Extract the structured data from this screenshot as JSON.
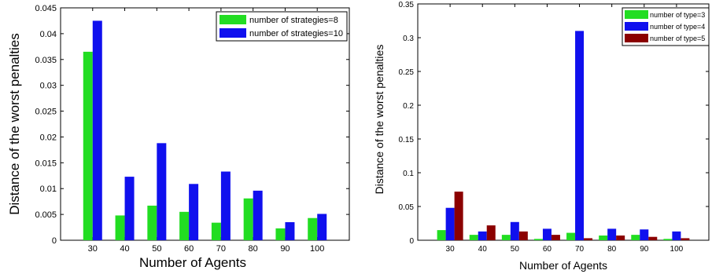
{
  "chart_data": [
    {
      "type": "bar",
      "xlabel": "Number of Agents",
      "ylabel": "Distance of the worst penalties",
      "ylim": [
        0,
        0.045
      ],
      "yticks": [
        "0",
        "0.005",
        "0.01",
        "0.015",
        "0.02",
        "0.025",
        "0.03",
        "0.035",
        "0.04",
        "0.045"
      ],
      "categories": [
        "30",
        "40",
        "50",
        "60",
        "70",
        "80",
        "90",
        "100"
      ],
      "legend_position": "top-right",
      "grid": false,
      "series": [
        {
          "name": "number of strategies=8",
          "color": "#22dd22",
          "values": [
            0.0365,
            0.0048,
            0.0067,
            0.0055,
            0.0034,
            0.0081,
            0.0023,
            0.0043
          ]
        },
        {
          "name": "number of strategies=10",
          "color": "#1010ee",
          "values": [
            0.0425,
            0.0123,
            0.0188,
            0.0109,
            0.0133,
            0.0096,
            0.0035,
            0.0051
          ]
        }
      ]
    },
    {
      "type": "bar",
      "xlabel": "Number of Agents",
      "ylabel": "Distance of the worst penalties",
      "ylim": [
        0,
        0.35
      ],
      "yticks": [
        "0",
        "0.05",
        "0.1",
        "0.15",
        "0.2",
        "0.25",
        "0.3",
        "0.35"
      ],
      "categories": [
        "30",
        "40",
        "50",
        "60",
        "70",
        "80",
        "90",
        "100"
      ],
      "legend_position": "top-right",
      "grid": false,
      "series": [
        {
          "name": "number of type=3",
          "color": "#22dd22",
          "values": [
            0.015,
            0.008,
            0.008,
            0.002,
            0.011,
            0.007,
            0.008,
            0.002
          ]
        },
        {
          "name": "number of type=4",
          "color": "#1010ee",
          "values": [
            0.048,
            0.013,
            0.027,
            0.017,
            0.31,
            0.017,
            0.016,
            0.013
          ]
        },
        {
          "name": "number of type=5",
          "color": "#8b0000",
          "values": [
            0.072,
            0.022,
            0.013,
            0.008,
            0.003,
            0.007,
            0.005,
            0.003
          ]
        }
      ]
    }
  ]
}
